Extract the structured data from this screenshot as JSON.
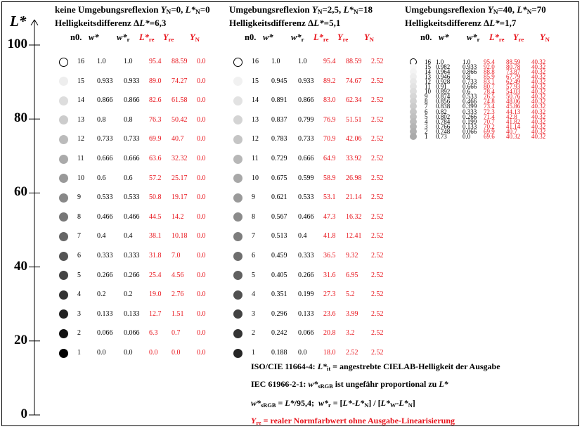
{
  "colors": {
    "red": "#e8141c",
    "black": "#000000"
  },
  "axis": {
    "label": "L*",
    "ticks": [
      100,
      80,
      60,
      40,
      20,
      0
    ]
  },
  "chart_data": {
    "type": "table",
    "columns_header": [
      "n0.",
      "w*",
      "w*r",
      "L*re",
      "Yre",
      "YN"
    ],
    "panels": [
      {
        "title": "keine Umgebungsreflexion Y_N=0, L*_N=0",
        "subtitle": "Helligkeitsdifferenz ΔL*=6,3",
        "rows": [
          [
            "16",
            "1.0",
            "1.0",
            "95.4",
            "88.59",
            "0.0"
          ],
          [
            "15",
            "0.933",
            "0.933",
            "89.0",
            "74.27",
            "0.0"
          ],
          [
            "14",
            "0.866",
            "0.866",
            "82.6",
            "61.58",
            "0.0"
          ],
          [
            "13",
            "0.8",
            "0.8",
            "76.3",
            "50.42",
            "0.0"
          ],
          [
            "12",
            "0.733",
            "0.733",
            "69.9",
            "40.7",
            "0.0"
          ],
          [
            "11",
            "0.666",
            "0.666",
            "63.6",
            "32.32",
            "0.0"
          ],
          [
            "10",
            "0.6",
            "0.6",
            "57.2",
            "25.17",
            "0.0"
          ],
          [
            "9",
            "0.533",
            "0.533",
            "50.8",
            "19.17",
            "0.0"
          ],
          [
            "8",
            "0.466",
            "0.466",
            "44.5",
            "14.2",
            "0.0"
          ],
          [
            "7",
            "0.4",
            "0.4",
            "38.1",
            "10.18",
            "0.0"
          ],
          [
            "6",
            "0.333",
            "0.333",
            "31.8",
            "7.0",
            "0.0"
          ],
          [
            "5",
            "0.266",
            "0.266",
            "25.4",
            "4.56",
            "0.0"
          ],
          [
            "4",
            "0.2",
            "0.2",
            "19.0",
            "2.76",
            "0.0"
          ],
          [
            "3",
            "0.133",
            "0.133",
            "12.7",
            "1.51",
            "0.0"
          ],
          [
            "2",
            "0.066",
            "0.066",
            "6.3",
            "0.7",
            "0.0"
          ],
          [
            "1",
            "0.0",
            "0.0",
            "0.0",
            "0.0",
            "0.0"
          ]
        ]
      },
      {
        "title": "Umgebungsreflexion Y_N=2,5, L*_N=18",
        "subtitle": "Helligkeitsdifferenz ΔL*=5,1",
        "rows": [
          [
            "16",
            "1.0",
            "1.0",
            "95.4",
            "88.59",
            "2.52"
          ],
          [
            "15",
            "0.945",
            "0.933",
            "89.2",
            "74.67",
            "2.52"
          ],
          [
            "14",
            "0.891",
            "0.866",
            "83.0",
            "62.34",
            "2.52"
          ],
          [
            "13",
            "0.837",
            "0.799",
            "76.9",
            "51.51",
            "2.52"
          ],
          [
            "12",
            "0.783",
            "0.733",
            "70.9",
            "42.06",
            "2.52"
          ],
          [
            "11",
            "0.729",
            "0.666",
            "64.9",
            "33.92",
            "2.52"
          ],
          [
            "10",
            "0.675",
            "0.599",
            "58.9",
            "26.98",
            "2.52"
          ],
          [
            "9",
            "0.621",
            "0.533",
            "53.1",
            "21.14",
            "2.52"
          ],
          [
            "8",
            "0.567",
            "0.466",
            "47.3",
            "16.32",
            "2.52"
          ],
          [
            "7",
            "0.513",
            "0.4",
            "41.8",
            "12.41",
            "2.52"
          ],
          [
            "6",
            "0.459",
            "0.333",
            "36.5",
            "9.32",
            "2.52"
          ],
          [
            "5",
            "0.405",
            "0.266",
            "31.6",
            "6.95",
            "2.52"
          ],
          [
            "4",
            "0.351",
            "0.199",
            "27.3",
            "5.2",
            "2.52"
          ],
          [
            "3",
            "0.296",
            "0.133",
            "23.6",
            "3.99",
            "2.52"
          ],
          [
            "2",
            "0.242",
            "0.066",
            "20.8",
            "3.2",
            "2.52"
          ],
          [
            "1",
            "0.188",
            "0.0",
            "18.0",
            "2.52",
            "2.52"
          ]
        ]
      },
      {
        "title": "Umgebungsreflexion Y_N=40, L*_N=70",
        "subtitle": "Helligkeitsdifferenz ΔL*=1,7",
        "rows": [
          [
            "16",
            "1.0",
            "1.0",
            "95.4",
            "88.59",
            "40.32"
          ],
          [
            "15",
            "0.982",
            "0.933",
            "92.0",
            "80.78",
            "40.32"
          ],
          [
            "14",
            "0.964",
            "0.866",
            "88.8",
            "73.87",
            "40.32"
          ],
          [
            "13",
            "0.946",
            "0.8",
            "85.9",
            "67.79",
            "40.32"
          ],
          [
            "12",
            "0.928",
            "0.733",
            "83.1",
            "62.49",
            "40.32"
          ],
          [
            "11",
            "0.91",
            "0.666",
            "80.7",
            "57.93",
            "40.32"
          ],
          [
            "10",
            "0.892",
            "0.6",
            "78.4",
            "54.03",
            "40.32"
          ],
          [
            "9",
            "0.874",
            "0.533",
            "76.5",
            "50.76",
            "40.32"
          ],
          [
            "8",
            "0.856",
            "0.466",
            "74.8",
            "48.06",
            "40.32"
          ],
          [
            "7",
            "0.838",
            "0.399",
            "73.4",
            "45.86",
            "40.32"
          ],
          [
            "6",
            "0.82",
            "0.333",
            "72.3",
            "44.13",
            "40.32"
          ],
          [
            "5",
            "0.802",
            "0.266",
            "71.4",
            "42.8",
            "40.32"
          ],
          [
            "4",
            "0.784",
            "0.199",
            "70.7",
            "41.82",
            "40.32"
          ],
          [
            "3",
            "0.766",
            "0.133",
            "70.2",
            "41.14",
            "40.32"
          ],
          [
            "2",
            "0.748",
            "0.066",
            "69.9",
            "40.7",
            "40.32"
          ],
          [
            "1",
            "0.73",
            "0.0",
            "69.6",
            "40.32",
            "40.32"
          ]
        ]
      }
    ]
  },
  "footer": {
    "line1": "ISO/CIE 11664-4: L*it = angestrebte CIELAB-Helligkeit der Ausgabe",
    "line2": "IEC 61966-2-1: w*sRGB ist ungefähr proportional zu L*",
    "line3": "w*sRGB = L*/95,4;  w*r = [L*-L*N] / [L*W-L*N]",
    "line4": "Yre = realer Normfarbwert ohne Ausgabe-Linearisierung"
  }
}
